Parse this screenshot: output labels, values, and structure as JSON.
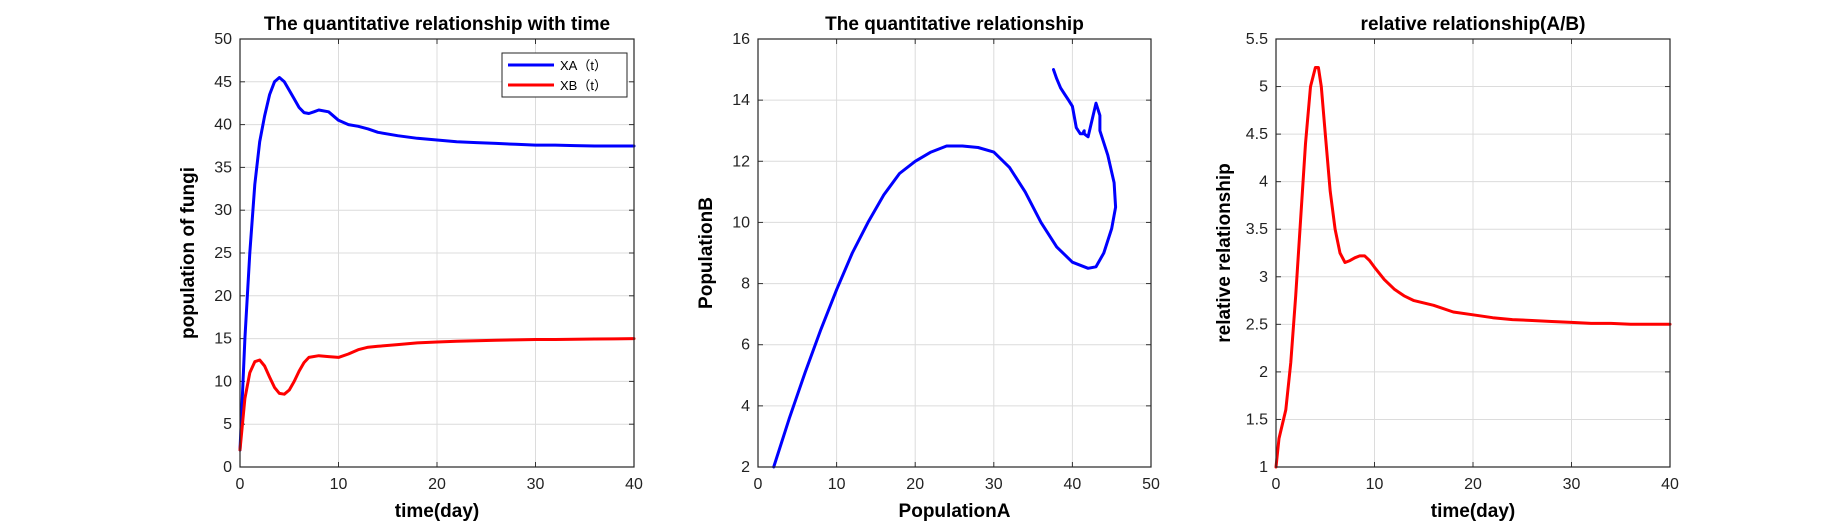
{
  "chart_data": [
    {
      "type": "line",
      "title": "The quantitative relationship with time",
      "xlabel": "time(day)",
      "ylabel": "population of fungi",
      "xlim": [
        0,
        40
      ],
      "ylim": [
        0,
        50
      ],
      "xticks": [
        "0",
        "10",
        "20",
        "30",
        "40"
      ],
      "yticks": [
        "0",
        "5",
        "10",
        "15",
        "20",
        "25",
        "30",
        "35",
        "40",
        "45",
        "50"
      ],
      "grid": true,
      "legend": "top-right",
      "series": [
        {
          "name": "XA（t）",
          "color": "#0000ff",
          "x": [
            0,
            0.5,
            1,
            1.5,
            2,
            2.5,
            3,
            3.5,
            4,
            4.5,
            5,
            5.5,
            6,
            6.5,
            7,
            7.5,
            8,
            9,
            10,
            11,
            12,
            13,
            14,
            16,
            18,
            20,
            22,
            24,
            26,
            28,
            30,
            32,
            34,
            36,
            38,
            40
          ],
          "y": [
            2,
            15,
            25,
            33,
            38,
            41,
            43.5,
            45,
            45.5,
            45,
            44,
            43,
            42,
            41.4,
            41.3,
            41.5,
            41.7,
            41.5,
            40.5,
            40,
            39.8,
            39.5,
            39.1,
            38.7,
            38.4,
            38.2,
            38.0,
            37.9,
            37.8,
            37.7,
            37.6,
            37.6,
            37.55,
            37.5,
            37.5,
            37.5
          ]
        },
        {
          "name": "XB（t）",
          "color": "#ff0000",
          "x": [
            0,
            0.5,
            1,
            1.5,
            2,
            2.5,
            3,
            3.5,
            4,
            4.5,
            5,
            5.5,
            6,
            6.5,
            7,
            8,
            9,
            10,
            11,
            12,
            13,
            14,
            16,
            18,
            20,
            22,
            24,
            26,
            28,
            30,
            32,
            34,
            36,
            38,
            40
          ],
          "y": [
            2,
            8,
            11,
            12.3,
            12.5,
            11.8,
            10.5,
            9.3,
            8.6,
            8.5,
            9,
            10,
            11.2,
            12.2,
            12.8,
            13,
            12.9,
            12.8,
            13.2,
            13.7,
            14,
            14.1,
            14.3,
            14.5,
            14.6,
            14.7,
            14.75,
            14.8,
            14.85,
            14.9,
            14.9,
            14.92,
            14.95,
            14.97,
            15
          ]
        }
      ]
    },
    {
      "type": "line",
      "title": "The quantitative relationship",
      "xlabel": "PopulationA",
      "ylabel": "PopulationB",
      "xlim": [
        0,
        50
      ],
      "ylim": [
        2,
        16
      ],
      "xticks": [
        "0",
        "10",
        "20",
        "30",
        "40",
        "50"
      ],
      "yticks": [
        "2",
        "4",
        "6",
        "8",
        "10",
        "12",
        "14",
        "16"
      ],
      "grid": true,
      "series": [
        {
          "color": "#0000ff",
          "x": [
            2,
            4,
            6,
            8,
            10,
            12,
            14,
            16,
            18,
            20,
            22,
            24,
            26,
            28,
            30,
            32,
            34,
            36,
            38,
            40,
            42,
            43,
            44,
            45,
            45.5,
            45.3,
            44.5,
            43.5,
            43.5,
            43,
            42,
            41.5,
            41.5,
            41.3,
            41,
            40.5,
            40,
            39.5,
            39,
            38.5,
            38,
            37.6
          ],
          "y": [
            2,
            3.6,
            5.1,
            6.5,
            7.8,
            9.0,
            10.0,
            10.9,
            11.6,
            12.0,
            12.3,
            12.5,
            12.5,
            12.45,
            12.3,
            11.8,
            11.0,
            10.0,
            9.2,
            8.7,
            8.5,
            8.55,
            9.0,
            9.8,
            10.5,
            11.3,
            12.2,
            13.0,
            13.5,
            13.9,
            12.8,
            12.9,
            13.0,
            12.9,
            12.9,
            13.1,
            13.8,
            14.0,
            14.2,
            14.4,
            14.7,
            15.0
          ]
        }
      ]
    },
    {
      "type": "line",
      "title": "relative relationship(A/B)",
      "xlabel": "time(day)",
      "ylabel": "relative relationship",
      "xlim": [
        0,
        40
      ],
      "ylim": [
        1,
        5.5
      ],
      "xticks": [
        "0",
        "10",
        "20",
        "30",
        "40"
      ],
      "yticks": [
        "1",
        "1.5",
        "2",
        "2.5",
        "3",
        "3.5",
        "4",
        "4.5",
        "5",
        "5.5"
      ],
      "grid": true,
      "series": [
        {
          "color": "#ff0000",
          "x": [
            0,
            0.3,
            1,
            1.5,
            2,
            2.5,
            3,
            3.5,
            4,
            4.3,
            4.6,
            5,
            5.5,
            6,
            6.5,
            7,
            7.5,
            8,
            8.5,
            9,
            9.5,
            10,
            11,
            12,
            13,
            14,
            16,
            18,
            20,
            22,
            24,
            26,
            28,
            30,
            32,
            34,
            36,
            38,
            40
          ],
          "y": [
            1,
            1.3,
            1.6,
            2.1,
            2.8,
            3.6,
            4.4,
            5.0,
            5.2,
            5.2,
            5.0,
            4.5,
            3.9,
            3.5,
            3.25,
            3.15,
            3.17,
            3.2,
            3.22,
            3.22,
            3.17,
            3.1,
            2.97,
            2.87,
            2.8,
            2.75,
            2.7,
            2.63,
            2.6,
            2.57,
            2.55,
            2.54,
            2.53,
            2.52,
            2.51,
            2.51,
            2.5,
            2.5,
            2.5
          ]
        }
      ]
    }
  ]
}
